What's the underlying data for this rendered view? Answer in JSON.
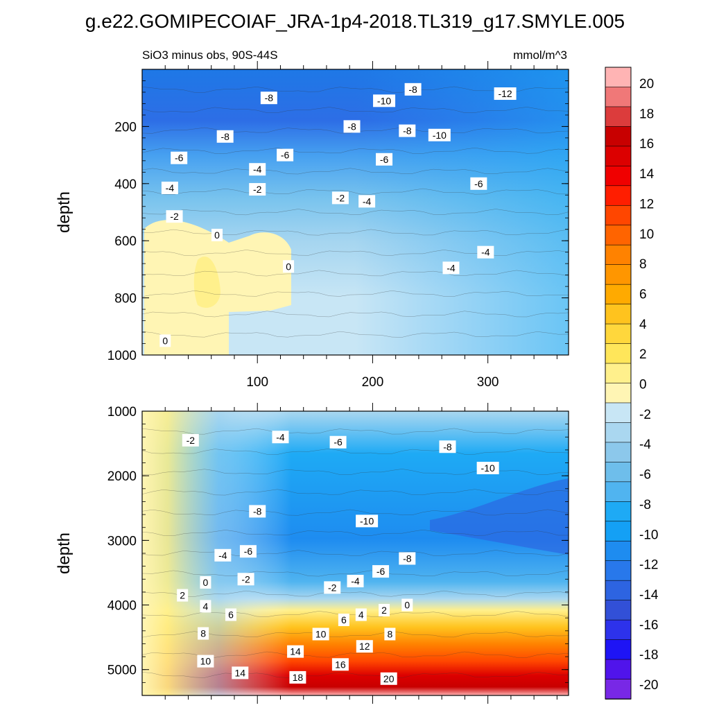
{
  "title": "g.e22.GOMIPECOIAF_JRA-1p4-2018.TL319_g17.SMYLE.005",
  "subtitle_left": "SiO3 minus obs, 90S-44S",
  "subtitle_right": "mmol/m^3",
  "chart_data": [
    {
      "type": "contour",
      "name": "upper-panel",
      "ylabel": "depth",
      "xlabel": "",
      "xlim": [
        0,
        370
      ],
      "ylim": [
        1000,
        0
      ],
      "xticks": [
        "100",
        "200",
        "300"
      ],
      "xtick_values": [
        100,
        200,
        300
      ],
      "yticks": [
        "200",
        "400",
        "600",
        "800",
        "1000"
      ],
      "ytick_values": [
        200,
        400,
        600,
        800,
        1000
      ],
      "contour_labels": [
        {
          "text": "-8",
          "x": 110,
          "y": 100
        },
        {
          "text": "-8",
          "x": 235,
          "y": 70
        },
        {
          "text": "-10",
          "x": 210,
          "y": 110
        },
        {
          "text": "-12",
          "x": 315,
          "y": 85
        },
        {
          "text": "-8",
          "x": 72,
          "y": 235
        },
        {
          "text": "-8",
          "x": 182,
          "y": 200
        },
        {
          "text": "-8",
          "x": 230,
          "y": 215
        },
        {
          "text": "-10",
          "x": 258,
          "y": 230
        },
        {
          "text": "-6",
          "x": 32,
          "y": 310
        },
        {
          "text": "-6",
          "x": 124,
          "y": 300
        },
        {
          "text": "-6",
          "x": 210,
          "y": 315
        },
        {
          "text": "-4",
          "x": 100,
          "y": 350
        },
        {
          "text": "-4",
          "x": 24,
          "y": 415
        },
        {
          "text": "-2",
          "x": 100,
          "y": 420
        },
        {
          "text": "-2",
          "x": 172,
          "y": 450
        },
        {
          "text": "-4",
          "x": 195,
          "y": 462
        },
        {
          "text": "-6",
          "x": 292,
          "y": 400
        },
        {
          "text": "-2",
          "x": 28,
          "y": 515
        },
        {
          "text": "0",
          "x": 65,
          "y": 580
        },
        {
          "text": "0",
          "x": 127,
          "y": 690
        },
        {
          "text": "-4",
          "x": 298,
          "y": 640
        },
        {
          "text": "-4",
          "x": 268,
          "y": 695
        },
        {
          "text": "0",
          "x": 20,
          "y": 950
        }
      ]
    },
    {
      "type": "contour",
      "name": "lower-panel",
      "ylabel": "depth",
      "xlabel": "",
      "xlim": [
        0,
        370
      ],
      "ylim": [
        5400,
        1000
      ],
      "yticks": [
        "1000",
        "2000",
        "3000",
        "4000",
        "5000"
      ],
      "ytick_values": [
        1000,
        2000,
        3000,
        4000,
        5000
      ],
      "contour_labels": [
        {
          "text": "-2",
          "x": 42,
          "y": 1450
        },
        {
          "text": "-4",
          "x": 120,
          "y": 1400
        },
        {
          "text": "-6",
          "x": 170,
          "y": 1480
        },
        {
          "text": "-8",
          "x": 265,
          "y": 1550
        },
        {
          "text": "-10",
          "x": 300,
          "y": 1880
        },
        {
          "text": "-8",
          "x": 100,
          "y": 2550
        },
        {
          "text": "-10",
          "x": 195,
          "y": 2700
        },
        {
          "text": "-4",
          "x": 70,
          "y": 3230
        },
        {
          "text": "-6",
          "x": 92,
          "y": 3170
        },
        {
          "text": "-8",
          "x": 230,
          "y": 3280
        },
        {
          "text": "-2",
          "x": 90,
          "y": 3600
        },
        {
          "text": "0",
          "x": 55,
          "y": 3650
        },
        {
          "text": "-6",
          "x": 207,
          "y": 3480
        },
        {
          "text": "-4",
          "x": 185,
          "y": 3630
        },
        {
          "text": "-2",
          "x": 165,
          "y": 3730
        },
        {
          "text": "2",
          "x": 35,
          "y": 3850
        },
        {
          "text": "4",
          "x": 55,
          "y": 4020
        },
        {
          "text": "6",
          "x": 77,
          "y": 4150
        },
        {
          "text": "0",
          "x": 230,
          "y": 4000
        },
        {
          "text": "2",
          "x": 210,
          "y": 4080
        },
        {
          "text": "4",
          "x": 190,
          "y": 4150
        },
        {
          "text": "6",
          "x": 175,
          "y": 4230
        },
        {
          "text": "8",
          "x": 53,
          "y": 4440
        },
        {
          "text": "10",
          "x": 155,
          "y": 4450
        },
        {
          "text": "8",
          "x": 215,
          "y": 4450
        },
        {
          "text": "12",
          "x": 193,
          "y": 4640
        },
        {
          "text": "14",
          "x": 133,
          "y": 4720
        },
        {
          "text": "10",
          "x": 55,
          "y": 4870
        },
        {
          "text": "16",
          "x": 172,
          "y": 4920
        },
        {
          "text": "14",
          "x": 85,
          "y": 5050
        },
        {
          "text": "18",
          "x": 135,
          "y": 5120
        },
        {
          "text": "20",
          "x": 214,
          "y": 5140
        }
      ]
    }
  ],
  "colorbar": {
    "labels": [
      "20",
      "18",
      "16",
      "14",
      "12",
      "10",
      "8",
      "6",
      "4",
      "2",
      "0",
      "-2",
      "-4",
      "-6",
      "-8",
      "-10",
      "-12",
      "-14",
      "-16",
      "-18",
      "-20"
    ],
    "colors": [
      "#ffb4b4",
      "#f07878",
      "#dc3c3c",
      "#c80000",
      "#dc0000",
      "#f00000",
      "#ff1e00",
      "#ff4600",
      "#ff6400",
      "#ff8200",
      "#ff9600",
      "#ffaa00",
      "#ffc31e",
      "#ffd73c",
      "#ffe65a",
      "#fff08c",
      "#fff5b4",
      "#c8e6f5",
      "#aad7f0",
      "#8cc8eb",
      "#6ebeeb",
      "#50b4f0",
      "#1eaaf5",
      "#14a0f5",
      "#1e8cf0",
      "#2878eb",
      "#2d64e1",
      "#3250d7",
      "#2d32eb",
      "#1e14f5",
      "#5014eb",
      "#7828e6"
    ]
  }
}
